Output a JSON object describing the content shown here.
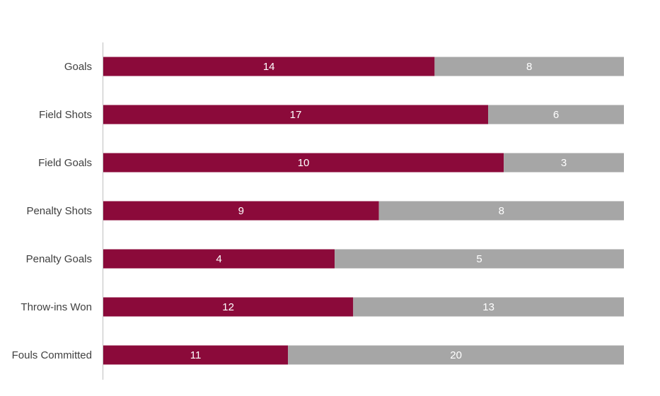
{
  "chart_data": {
    "type": "bar",
    "orientation": "horizontal",
    "stacking": "100-percent",
    "categories": [
      "Goals",
      "Field Shots",
      "Field Goals",
      "Penalty Shots",
      "Penalty Goals",
      "Throw-ins Won",
      "Fouls Committed"
    ],
    "series": [
      {
        "values": [
          14,
          17,
          10,
          9,
          4,
          12,
          11
        ],
        "color": "#8b0a3a"
      },
      {
        "values": [
          8,
          6,
          3,
          8,
          5,
          13,
          20
        ],
        "color": "#a6a6a6"
      }
    ],
    "title": "",
    "xlabel": "",
    "ylabel": "",
    "grid": false,
    "legend": "none"
  }
}
